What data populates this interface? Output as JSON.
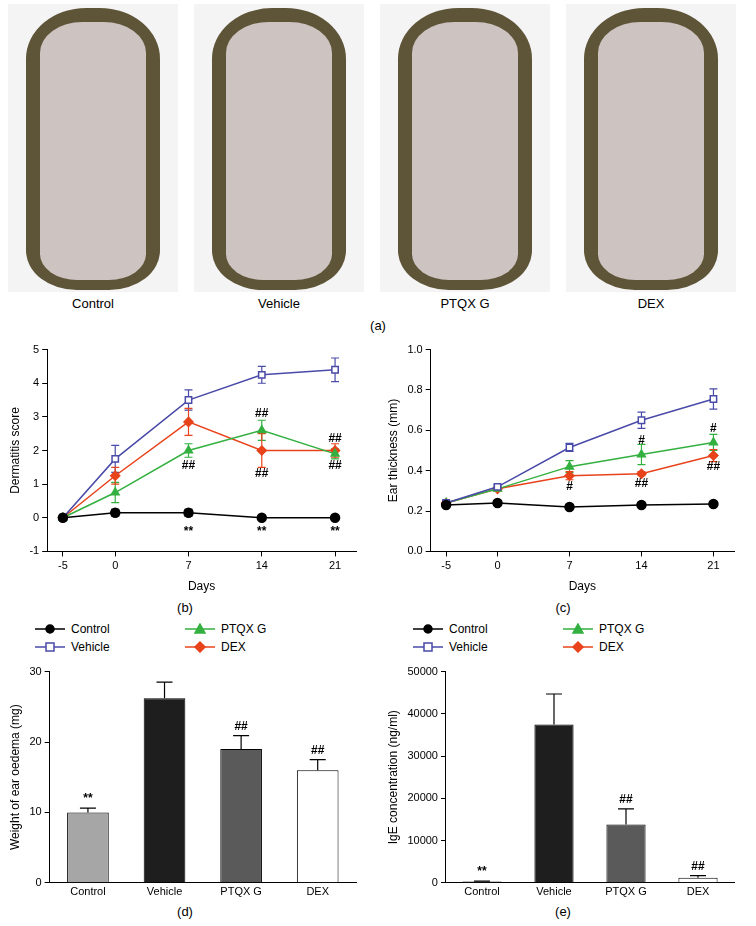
{
  "photo_panel": {
    "panel_label": "(a)",
    "labels": [
      "Control",
      "Vehicle",
      "PTQX G",
      "DEX"
    ]
  },
  "chart_data": [
    {
      "type": "line",
      "panel_label": "(b)",
      "x_label": "Days",
      "y_label": "Dermatitis score",
      "x": [
        -5,
        0,
        7,
        14,
        21
      ],
      "xlim": [
        -6.5,
        23
      ],
      "xticks": [
        -5,
        0,
        7,
        14,
        21
      ],
      "ylim": [
        -1,
        5
      ],
      "yticks": [
        -1,
        0,
        1,
        2,
        3,
        4,
        5
      ],
      "grid": false,
      "legend": "bottom",
      "series": [
        {
          "name": "Control",
          "color": "#000000",
          "marker": "circle",
          "values": [
            0,
            0.15,
            0.15,
            0,
            0
          ],
          "errors": [
            0,
            0.1,
            0.1,
            0,
            0
          ]
        },
        {
          "name": "Vehicle",
          "color": "#4a4aa8",
          "marker": "open_square",
          "values": [
            0,
            1.75,
            3.5,
            4.25,
            4.4
          ],
          "errors": [
            0,
            0.4,
            0.3,
            0.25,
            0.35
          ]
        },
        {
          "name": "PTQX G",
          "color": "#33b040",
          "marker": "triangle",
          "values": [
            0,
            0.75,
            2.0,
            2.6,
            1.9
          ],
          "errors": [
            0,
            0.3,
            0.2,
            0.3,
            0.15
          ]
        },
        {
          "name": "DEX",
          "color": "#e8431b",
          "marker": "diamond",
          "values": [
            0,
            1.25,
            2.85,
            2.0,
            2.0
          ],
          "errors": [
            0,
            0.25,
            0.4,
            0.5,
            0.2
          ]
        }
      ],
      "annotations": [
        {
          "x": 7,
          "y": -0.4,
          "text": "**"
        },
        {
          "x": 14,
          "y": -0.4,
          "text": "**"
        },
        {
          "x": 21,
          "y": -0.4,
          "text": "**"
        },
        {
          "x": 7,
          "y": 1.55,
          "text": "##"
        },
        {
          "x": 14,
          "y": 3.1,
          "text": "##"
        },
        {
          "x": 14,
          "y": 1.3,
          "text": "##"
        },
        {
          "x": 21,
          "y": 2.35,
          "text": "##"
        },
        {
          "x": 21,
          "y": 1.55,
          "text": "##"
        }
      ]
    },
    {
      "type": "line",
      "panel_label": "(c)",
      "x_label": "Days",
      "y_label": "Ear thickness (mm)",
      "x": [
        -5,
        0,
        7,
        14,
        21
      ],
      "xlim": [
        -6.5,
        23
      ],
      "xticks": [
        -5,
        0,
        7,
        14,
        21
      ],
      "ylim": [
        0,
        1.0
      ],
      "yticks": [
        {
          "value": 0,
          "label": "0.0"
        },
        0.2,
        0.4,
        0.6,
        0.8,
        {
          "value": 1.0,
          "label": "1.0"
        }
      ],
      "grid": false,
      "legend": "bottom",
      "series": [
        {
          "name": "Control",
          "color": "#000000",
          "marker": "circle",
          "values": [
            0.23,
            0.24,
            0.22,
            0.23,
            0.235
          ],
          "errors": [
            0.01,
            0.01,
            0.01,
            0.01,
            0.01
          ]
        },
        {
          "name": "Vehicle",
          "color": "#4a4aa8",
          "marker": "open_square",
          "values": [
            0.24,
            0.32,
            0.515,
            0.65,
            0.755
          ],
          "errors": [
            0.01,
            0.01,
            0.02,
            0.04,
            0.05
          ]
        },
        {
          "name": "PTQX G",
          "color": "#33b040",
          "marker": "triangle",
          "values": [
            0.24,
            0.31,
            0.42,
            0.48,
            0.54
          ],
          "errors": [
            0.01,
            0.01,
            0.03,
            0.05,
            0.04
          ]
        },
        {
          "name": "DEX",
          "color": "#e8431b",
          "marker": "diamond",
          "values": [
            0.24,
            0.31,
            0.375,
            0.385,
            0.475
          ],
          "errors": [
            0.01,
            0.01,
            0.02,
            0.01,
            0.03
          ]
        }
      ],
      "annotations": [
        {
          "x": 7,
          "y": 0.32,
          "text": "#"
        },
        {
          "x": 14,
          "y": 0.55,
          "text": "#"
        },
        {
          "x": 14,
          "y": 0.335,
          "text": "##"
        },
        {
          "x": 21,
          "y": 0.61,
          "text": "#"
        },
        {
          "x": 21,
          "y": 0.42,
          "text": "##"
        }
      ]
    },
    {
      "type": "bar",
      "panel_label": "(d)",
      "y_label": "Weight of ear oedema (mg)",
      "categories": [
        "Control",
        "Vehicle",
        "PTQX G",
        "DEX"
      ],
      "values": [
        10,
        26.2,
        19,
        16
      ],
      "errors": [
        0.6,
        2.3,
        1.9,
        1.5
      ],
      "significance": [
        "**",
        null,
        "##",
        "##"
      ],
      "colors": [
        "#a6a6a6",
        "#1e1e1e",
        "#5a5a5a",
        "#ffffff"
      ],
      "ylim": [
        0,
        30
      ],
      "yticks": [
        0,
        10,
        20,
        30
      ],
      "grid": false
    },
    {
      "type": "bar",
      "panel_label": "(e)",
      "y_label": "IgE concentration (ng/ml)",
      "categories": [
        "Control",
        "Vehicle",
        "PTQX G",
        "DEX"
      ],
      "values": [
        300,
        37500,
        13800,
        1200
      ],
      "errors": [
        100,
        7200,
        3700,
        500
      ],
      "significance": [
        "**",
        null,
        "##",
        "##"
      ],
      "colors": [
        "#a6a6a6",
        "#1e1e1e",
        "#5a5a5a",
        "#ffffff"
      ],
      "ylim": [
        0,
        50000
      ],
      "yticks": [
        0,
        10000,
        20000,
        30000,
        40000,
        50000
      ],
      "grid": false
    }
  ]
}
